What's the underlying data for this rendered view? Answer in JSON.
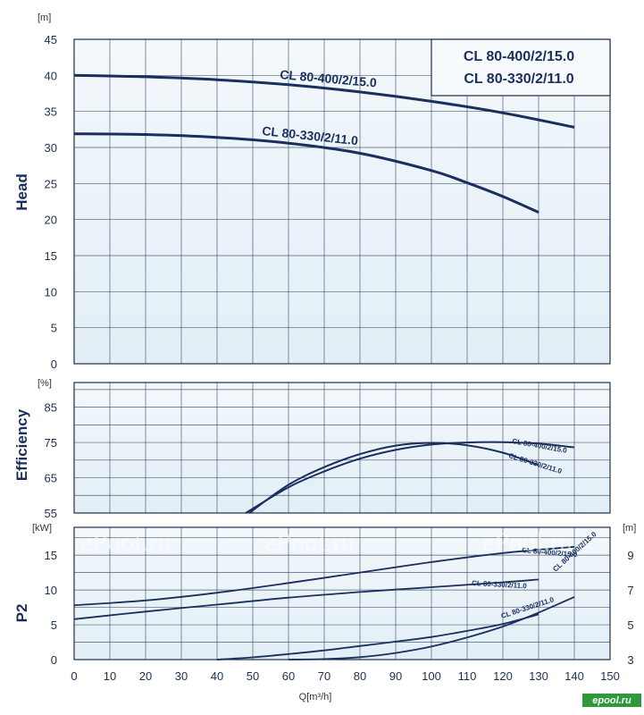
{
  "chart_data": [
    {
      "type": "line",
      "panel": "head",
      "ylabel": "Head",
      "unit": "[m]",
      "xlim": [
        0,
        150
      ],
      "ylim": [
        0,
        45
      ],
      "yticks": [
        0,
        5,
        10,
        15,
        20,
        25,
        30,
        35,
        40,
        45
      ],
      "grid": true,
      "legend": {
        "placement": "top-right",
        "entries": [
          "CL 80-400/2/15.0",
          "CL 80-330/2/11.0"
        ]
      },
      "series": [
        {
          "name": "CL 80-400/2/15.0",
          "x": [
            0,
            20,
            40,
            60,
            80,
            100,
            120,
            140
          ],
          "y": [
            40,
            39.8,
            39.4,
            38.7,
            37.7,
            36.4,
            34.8,
            32.8
          ]
        },
        {
          "name": "CL 80-330/2/11.0",
          "x": [
            0,
            20,
            40,
            60,
            80,
            100,
            110,
            120,
            130
          ],
          "y": [
            31.9,
            31.8,
            31.4,
            30.6,
            29.2,
            26.8,
            25.1,
            23.2,
            21.0
          ]
        }
      ]
    },
    {
      "type": "line",
      "panel": "efficiency",
      "ylabel": "Efficiency",
      "unit": "[%]",
      "xlim": [
        0,
        150
      ],
      "ylim": [
        55,
        92
      ],
      "yticks": [
        55,
        65,
        75,
        85
      ],
      "grid": true,
      "series": [
        {
          "name": "CL 80-400/2/15.0",
          "x": [
            48,
            60,
            70,
            80,
            90,
            100,
            110,
            120,
            130,
            140
          ],
          "y": [
            55,
            62.3,
            66.8,
            70.4,
            72.9,
            74.4,
            75.0,
            75.1,
            74.7,
            73.6
          ]
        },
        {
          "name": "CL 80-330/2/11.0",
          "x": [
            49,
            60,
            70,
            80,
            90,
            100,
            110,
            120,
            130
          ],
          "y": [
            55,
            63.0,
            68.0,
            71.7,
            74.1,
            74.9,
            74.2,
            72.1,
            68.6
          ]
        }
      ]
    },
    {
      "type": "line",
      "panel": "power",
      "ylabel": "P2",
      "unit": "[kW]",
      "right_unit": "[m]",
      "xlabel": "Q[m³/h]",
      "xlim": [
        0,
        150
      ],
      "xticks": [
        0,
        10,
        20,
        30,
        40,
        50,
        60,
        70,
        80,
        90,
        100,
        110,
        120,
        130,
        140,
        150
      ],
      "ylim": [
        0,
        19
      ],
      "yticks": [
        0,
        5,
        10,
        15
      ],
      "y2lim": [
        3,
        10.6
      ],
      "y2ticks": [
        3,
        5,
        7,
        9
      ],
      "grid": true,
      "series": [
        {
          "name": "CL 80-400/2/15.0",
          "axis": "P2",
          "x": [
            0,
            20,
            40,
            60,
            80,
            100,
            120,
            140
          ],
          "y": [
            7.8,
            8.5,
            9.6,
            11.0,
            12.5,
            14.0,
            15.3,
            16.2
          ]
        },
        {
          "name": "CL 80-330/2/11.0",
          "axis": "P2",
          "x": [
            0,
            20,
            40,
            60,
            80,
            100,
            120,
            130
          ],
          "y": [
            5.8,
            6.9,
            7.9,
            8.9,
            9.7,
            10.4,
            11.1,
            11.5
          ]
        },
        {
          "name": "CL 80-400/2/15.0",
          "axis": "NPSH",
          "x": [
            60,
            70,
            80,
            90,
            100,
            110,
            120,
            130,
            140
          ],
          "y": [
            3.0,
            3.03,
            3.14,
            3.38,
            3.75,
            4.27,
            4.9,
            5.7,
            6.6
          ]
        },
        {
          "name": "CL 80-330/2/11.0",
          "axis": "NPSH",
          "x": [
            40,
            50,
            60,
            70,
            80,
            90,
            100,
            110,
            120,
            130
          ],
          "y": [
            3.0,
            3.13,
            3.32,
            3.53,
            3.78,
            4.03,
            4.3,
            4.65,
            5.05,
            5.6
          ]
        }
      ]
    }
  ],
  "watermarks": [
    "ePool.ru",
    "ePool.ru",
    "ePool.ru",
    "epool.ru"
  ]
}
